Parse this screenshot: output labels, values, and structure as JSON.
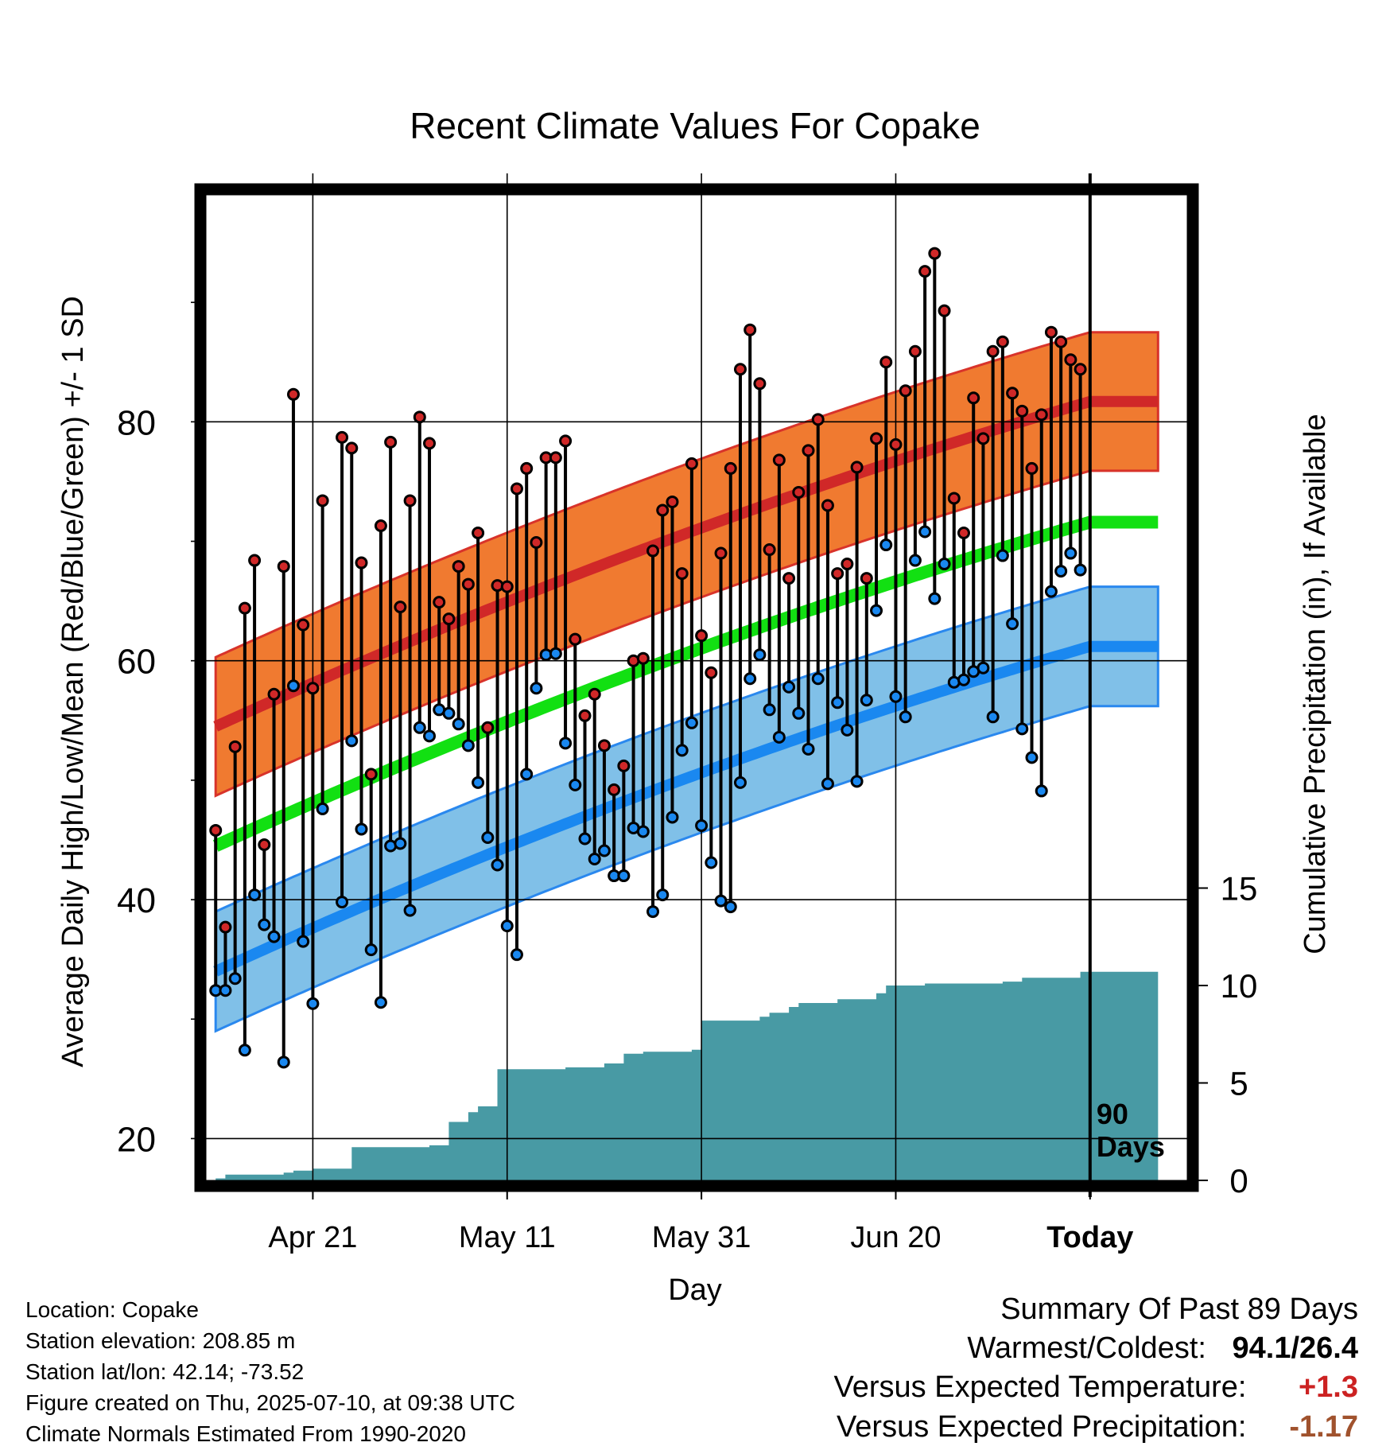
{
  "chart_data": {
    "type": "line",
    "title": "Recent Climate Values For Copake",
    "xlabel": "Day",
    "ylabel": "Average Daily High/Low/Mean (Red/Blue/Green) +/- 1 SD",
    "ylabel2": "Cumulative Precipitation (in), If Available",
    "x_ticks": [
      {
        "day": 10,
        "label": "Apr 21"
      },
      {
        "day": 30,
        "label": "May 11"
      },
      {
        "day": 50,
        "label": "May 31"
      },
      {
        "day": 70,
        "label": "Jun 20"
      },
      {
        "day": 90,
        "label": "Today"
      }
    ],
    "xlim": [
      -1,
      100
    ],
    "ylim": [
      16.5,
      99
    ],
    "y_ticks": [
      20,
      40,
      60,
      80
    ],
    "y2_ticks": [
      0,
      5,
      10,
      15
    ],
    "today_marker": {
      "day": 90,
      "label_line1": "90",
      "label_line2": "Days"
    },
    "grid": true,
    "normals": {
      "high_mean": [
        54.5,
        81.7
      ],
      "high_sd": 5.8,
      "low_mean": [
        34.0,
        61.2
      ],
      "low_sd": 5.0,
      "mean_mean": [
        44.5,
        71.6
      ]
    },
    "series": [
      {
        "name": "High",
        "color": "#cc2222",
        "values": [
          45.8,
          37.7,
          52.8,
          64.4,
          68.4,
          44.6,
          57.2,
          67.9,
          82.3,
          63.0,
          57.7,
          73.4,
          null,
          78.7,
          77.8,
          68.2,
          50.5,
          71.3,
          78.3,
          64.5,
          73.4,
          80.4,
          78.2,
          64.9,
          63.5,
          67.9,
          66.4,
          70.7,
          54.4,
          66.3,
          66.2,
          74.4,
          76.1,
          69.9,
          77.0,
          77.0,
          78.4,
          61.8,
          55.4,
          57.2,
          52.9,
          49.2,
          51.2,
          60.0,
          60.2,
          69.2,
          72.6,
          73.3,
          67.3,
          76.5,
          62.1,
          59.0,
          69.0,
          76.1,
          84.4,
          87.7,
          83.2,
          69.3,
          76.8,
          66.9,
          74.1,
          77.6,
          80.2,
          73.0,
          67.3,
          68.1,
          76.2,
          66.9,
          78.6,
          85.0,
          78.1,
          82.6,
          85.9,
          92.6,
          94.1,
          89.3,
          73.6,
          70.7,
          82.0,
          78.6,
          85.9,
          86.7,
          82.4,
          80.9,
          76.1,
          80.6,
          87.5,
          86.7,
          85.2,
          84.4
        ]
      },
      {
        "name": "Low",
        "color": "#2288dd",
        "values": [
          32.4,
          32.4,
          33.4,
          27.4,
          40.4,
          37.9,
          36.9,
          26.4,
          57.9,
          36.5,
          31.3,
          47.6,
          null,
          39.8,
          53.3,
          45.9,
          35.8,
          31.4,
          44.5,
          44.7,
          39.1,
          54.4,
          53.7,
          55.9,
          55.6,
          54.7,
          52.9,
          49.8,
          45.2,
          42.9,
          37.8,
          35.4,
          50.5,
          57.7,
          60.5,
          60.6,
          53.1,
          49.6,
          45.1,
          43.4,
          44.1,
          42.0,
          42.0,
          46.0,
          45.7,
          39.0,
          40.4,
          46.9,
          52.5,
          54.8,
          46.2,
          43.1,
          39.9,
          39.4,
          49.8,
          58.5,
          60.5,
          55.9,
          53.6,
          57.8,
          55.6,
          52.6,
          58.5,
          49.7,
          56.5,
          54.2,
          49.9,
          56.7,
          64.2,
          69.7,
          57.0,
          55.3,
          68.4,
          70.8,
          65.2,
          68.1,
          58.2,
          58.4,
          59.1,
          59.4,
          55.3,
          68.8,
          63.1,
          54.3,
          51.9,
          49.1,
          65.8,
          67.5,
          69.0,
          67.6
        ]
      },
      {
        "name": "Cumulative Precipitation",
        "color": "#489aa4",
        "steps": [
          [
            0,
            0.1
          ],
          [
            1,
            0.3
          ],
          [
            7,
            0.4
          ],
          [
            8,
            0.5
          ],
          [
            10,
            0.6
          ],
          [
            14,
            1.7
          ],
          [
            22,
            1.8
          ],
          [
            24,
            3.0
          ],
          [
            26,
            3.5
          ],
          [
            27,
            3.8
          ],
          [
            29,
            5.7
          ],
          [
            36,
            5.8
          ],
          [
            40,
            6.0
          ],
          [
            42,
            6.5
          ],
          [
            44,
            6.6
          ],
          [
            49,
            6.7
          ],
          [
            50,
            8.2
          ],
          [
            56,
            8.4
          ],
          [
            57,
            8.6
          ],
          [
            59,
            8.9
          ],
          [
            60,
            9.1
          ],
          [
            64,
            9.3
          ],
          [
            68,
            9.6
          ],
          [
            69,
            10.0
          ],
          [
            73,
            10.1
          ],
          [
            81,
            10.2
          ],
          [
            83,
            10.4
          ],
          [
            88,
            10.4
          ],
          [
            89,
            10.7
          ]
        ]
      }
    ]
  },
  "info": [
    "Location: Copake",
    "Station elevation: 208.85 m",
    "Station lat/lon: 42.14; -73.52",
    "Figure created on Thu, 2025-07-10, at 09:38 UTC",
    "Climate Normals Estimated From 1990-2020"
  ],
  "summary": {
    "heading": "Summary Of Past 89 Days",
    "warm_cold_label": "Warmest/Coldest:",
    "warm_cold_value": "94.1/26.4",
    "temp_label": "Versus Expected Temperature:",
    "temp_value": "+1.3",
    "temp_color": "#cc2222",
    "precip_label": "Versus Expected Precipitation:",
    "precip_value": "-1.17",
    "precip_color": "#a0522d"
  }
}
